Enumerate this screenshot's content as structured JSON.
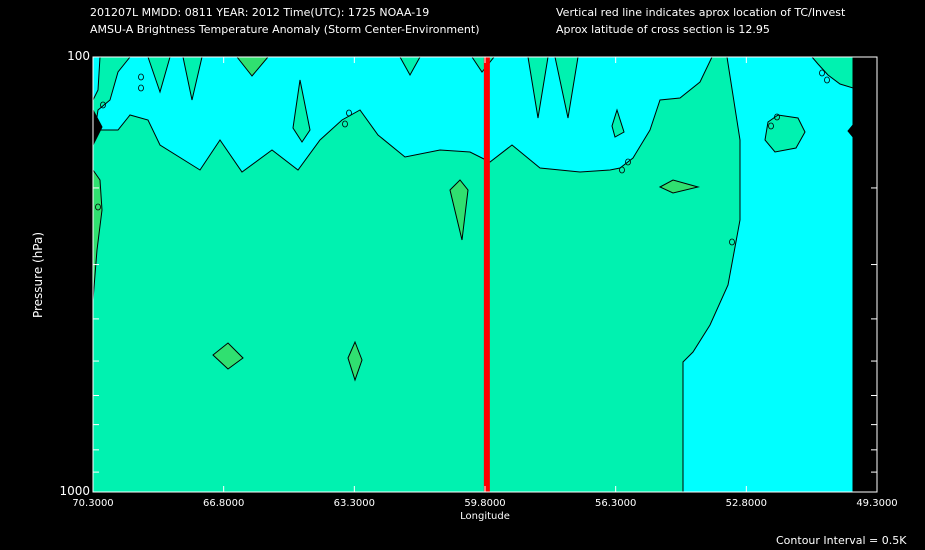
{
  "header": {
    "line1_left": "201207L  MMDD: 0811 YEAR: 2012 Time(UTC): 1725 NOAA-19",
    "line2_left": "AMSU-A Brightness Temperature Anomaly (Storm Center-Environment)",
    "line1_right": "Vertical red line indicates aprox location of TC/Invest",
    "line2_right": "Aprox latitude of cross section is 12.95"
  },
  "footer": {
    "contour_interval": "Contour Interval = 0.5K"
  },
  "colors": {
    "background": "#000000",
    "positive_fill": "#00f2b0",
    "zero_fill": "#00ffff",
    "peak_fill": "#30e070",
    "storm_line": "#ff0000",
    "contour": "#000000"
  },
  "chart_data": {
    "type": "contour",
    "title": "AMSU-A Brightness Temperature Anomaly (Storm Center-Environment)",
    "xlabel": "Longitude",
    "ylabel": "Pressure (hPa)",
    "x_ticks": [
      "70.3000",
      "66.8000",
      "63.3000",
      "59.8000",
      "56.3000",
      "52.8000",
      "49.3000"
    ],
    "y_ticks": [
      "100",
      "1000"
    ],
    "xlim": [
      70.3,
      49.3
    ],
    "ylim": [
      1000,
      100
    ],
    "y_scale": "log",
    "storm_longitude": 59.75,
    "contour_interval_K": 0.5,
    "grid": false
  }
}
